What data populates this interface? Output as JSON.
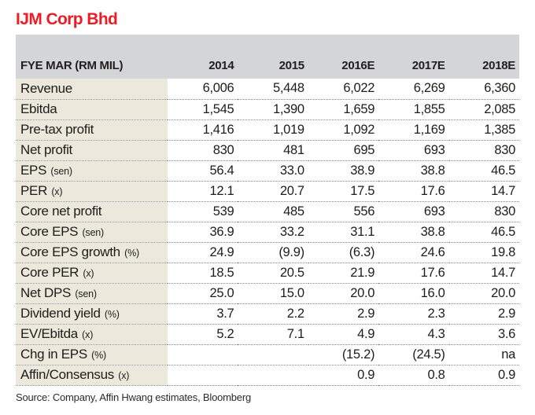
{
  "title": "IJM Corp Bhd",
  "source": "Source: Company, Affin Hwang estimates, Bloomberg",
  "colors": {
    "accent_red": "#ed1c24",
    "header_gray": "#d3d5d6",
    "label_beige": "#ece9dc",
    "text": "#1d1d1b"
  },
  "table": {
    "header": [
      "FYE MAR (RM MIL)",
      "2014",
      "2015",
      "2016E",
      "2017E",
      "2018E"
    ],
    "rows": [
      {
        "label": "Revenue",
        "unit": "",
        "values": [
          "6,006",
          "5,448",
          "6,022",
          "6,269",
          "6,360"
        ]
      },
      {
        "label": "Ebitda",
        "unit": "",
        "values": [
          "1,545",
          "1,390",
          "1,659",
          "1,855",
          "2,085"
        ]
      },
      {
        "label": "Pre-tax profit",
        "unit": "",
        "values": [
          "1,416",
          "1,019",
          "1,092",
          "1,169",
          "1,385"
        ]
      },
      {
        "label": "Net profit",
        "unit": "",
        "values": [
          "830",
          "481",
          "695",
          "693",
          "830"
        ]
      },
      {
        "label": "EPS",
        "unit": "(sen)",
        "values": [
          "56.4",
          "33.0",
          "38.9",
          "38.8",
          "46.5"
        ]
      },
      {
        "label": "PER",
        "unit": "(x)",
        "values": [
          "12.1",
          "20.7",
          "17.5",
          "17.6",
          "14.7"
        ]
      },
      {
        "label": "Core net profit",
        "unit": "",
        "values": [
          "539",
          "485",
          "556",
          "693",
          "830"
        ]
      },
      {
        "label": "Core EPS",
        "unit": "(sen)",
        "values": [
          "36.9",
          "33.2",
          "31.1",
          "38.8",
          "46.5"
        ]
      },
      {
        "label": "Core EPS growth",
        "unit": "(%)",
        "values": [
          "24.9",
          "(9.9)",
          "(6.3)",
          "24.6",
          "19.8"
        ]
      },
      {
        "label": "Core PER",
        "unit": "(x)",
        "values": [
          "18.5",
          "20.5",
          "21.9",
          "17.6",
          "14.7"
        ]
      },
      {
        "label": "Net DPS",
        "unit": "(sen)",
        "values": [
          "25.0",
          "15.0",
          "20.0",
          "16.0",
          "20.0"
        ]
      },
      {
        "label": "Dividend yield",
        "unit": "(%)",
        "values": [
          "3.7",
          "2.2",
          "2.9",
          "2.3",
          "2.9"
        ]
      },
      {
        "label": "EV/Ebitda",
        "unit": "(x)",
        "values": [
          "5.2",
          "7.1",
          "4.9",
          "4.3",
          "3.6"
        ]
      },
      {
        "label": "Chg in EPS",
        "unit": "(%)",
        "values": [
          "",
          "",
          "(15.2)",
          "(24.5)",
          "na"
        ]
      },
      {
        "label": "Affin/Consensus",
        "unit": "(x)",
        "values": [
          "",
          "",
          "0.9",
          "0.8",
          "0.9"
        ]
      }
    ]
  },
  "chart_data": {
    "type": "table",
    "title": "IJM Corp Bhd",
    "columns": [
      "FYE MAR (RM MIL)",
      "2014",
      "2015",
      "2016E",
      "2017E",
      "2018E"
    ],
    "rows": [
      [
        "Revenue",
        "6,006",
        "5,448",
        "6,022",
        "6,269",
        "6,360"
      ],
      [
        "Ebitda",
        "1,545",
        "1,390",
        "1,659",
        "1,855",
        "2,085"
      ],
      [
        "Pre-tax profit",
        "1,416",
        "1,019",
        "1,092",
        "1,169",
        "1,385"
      ],
      [
        "Net profit",
        "830",
        "481",
        "695",
        "693",
        "830"
      ],
      [
        "EPS (sen)",
        "56.4",
        "33.0",
        "38.9",
        "38.8",
        "46.5"
      ],
      [
        "PER (x)",
        "12.1",
        "20.7",
        "17.5",
        "17.6",
        "14.7"
      ],
      [
        "Core net profit",
        "539",
        "485",
        "556",
        "693",
        "830"
      ],
      [
        "Core EPS (sen)",
        "36.9",
        "33.2",
        "31.1",
        "38.8",
        "46.5"
      ],
      [
        "Core EPS growth (%)",
        "24.9",
        "(9.9)",
        "(6.3)",
        "24.6",
        "19.8"
      ],
      [
        "Core PER (x)",
        "18.5",
        "20.5",
        "21.9",
        "17.6",
        "14.7"
      ],
      [
        "Net DPS (sen)",
        "25.0",
        "15.0",
        "20.0",
        "16.0",
        "20.0"
      ],
      [
        "Dividend yield (%)",
        "3.7",
        "2.2",
        "2.9",
        "2.3",
        "2.9"
      ],
      [
        "EV/Ebitda (x)",
        "5.2",
        "7.1",
        "4.9",
        "4.3",
        "3.6"
      ],
      [
        "Chg in EPS (%)",
        "",
        "",
        "(15.2)",
        "(24.5)",
        "na"
      ],
      [
        "Affin/Consensus (x)",
        "",
        "",
        "0.9",
        "0.8",
        "0.9"
      ]
    ],
    "source": "Source: Company, Affin Hwang estimates, Bloomberg"
  }
}
